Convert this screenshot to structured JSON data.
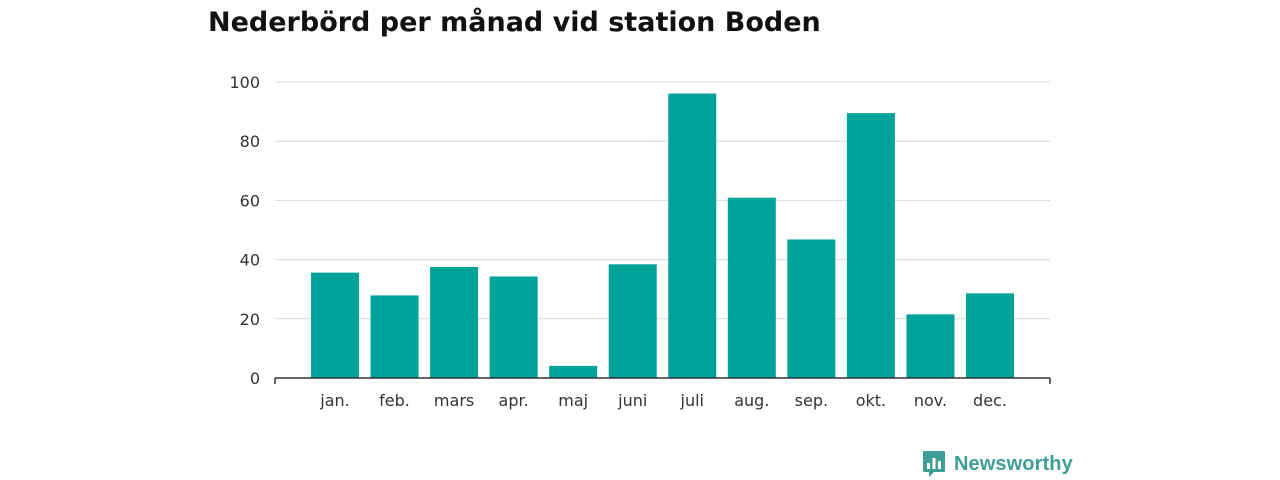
{
  "colors": {
    "bar": "#00a39a",
    "grid": "#d8d8d8",
    "axis": "#333333",
    "brand": "#3f9e95"
  },
  "brand": {
    "name": "Newsworthy",
    "icon": "bar-chart-speech-bubble-icon"
  },
  "chart_data": {
    "type": "bar",
    "title": "Nederbörd per månad vid station Boden",
    "xlabel": "",
    "ylabel": "",
    "categories": [
      "jan.",
      "feb.",
      "mars",
      "apr.",
      "maj",
      "juni",
      "juli",
      "aug.",
      "sep.",
      "okt.",
      "nov.",
      "dec."
    ],
    "values": [
      35.6,
      27.9,
      37.5,
      34.3,
      4.1,
      38.4,
      96.1,
      60.9,
      46.8,
      89.5,
      21.5,
      28.6
    ],
    "ylim": [
      0,
      100
    ],
    "yticks": [
      0,
      20,
      40,
      60,
      80,
      100
    ],
    "grid": true,
    "legend": "none"
  }
}
